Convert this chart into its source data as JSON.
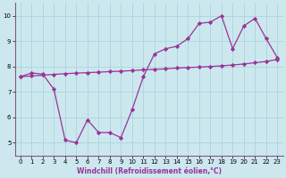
{
  "xlabel": "Windchill (Refroidissement éolien,°C)",
  "bg_color": "#cce8ee",
  "line_color": "#993399",
  "grid_color": "#aad4dd",
  "x_data": [
    0,
    1,
    2,
    3,
    4,
    5,
    6,
    7,
    8,
    9,
    10,
    11,
    12,
    13,
    14,
    15,
    16,
    17,
    18,
    19,
    20,
    21,
    22,
    23
  ],
  "y_jagged": [
    7.6,
    7.75,
    7.7,
    7.1,
    5.1,
    5.0,
    5.9,
    5.4,
    5.4,
    5.2,
    6.3,
    7.6,
    8.5,
    8.7,
    8.8,
    9.1,
    9.7,
    9.75,
    10.0,
    8.7,
    9.6,
    9.9,
    9.1,
    8.35
  ],
  "y_smooth": [
    7.6,
    7.63,
    7.66,
    7.69,
    7.72,
    7.74,
    7.76,
    7.78,
    7.8,
    7.82,
    7.84,
    7.87,
    7.89,
    7.91,
    7.94,
    7.96,
    7.98,
    8.0,
    8.03,
    8.06,
    8.1,
    8.15,
    8.2,
    8.28
  ],
  "ylim": [
    4.5,
    10.5
  ],
  "yticks": [
    5,
    6,
    7,
    8,
    9,
    10
  ],
  "xlim": [
    -0.5,
    23.5
  ],
  "xticks": [
    0,
    1,
    2,
    3,
    4,
    5,
    6,
    7,
    8,
    9,
    10,
    11,
    12,
    13,
    14,
    15,
    16,
    17,
    18,
    19,
    20,
    21,
    22,
    23
  ],
  "tick_fontsize": 5,
  "xlabel_fontsize": 5.5
}
